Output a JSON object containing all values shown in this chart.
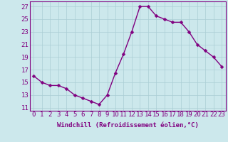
{
  "x": [
    0,
    1,
    2,
    3,
    4,
    5,
    6,
    7,
    8,
    9,
    10,
    11,
    12,
    13,
    14,
    15,
    16,
    17,
    18,
    19,
    20,
    21,
    22,
    23
  ],
  "y": [
    16,
    15,
    14.5,
    14.5,
    14,
    13,
    12.5,
    12,
    11.5,
    13,
    16.5,
    19.5,
    23,
    27,
    27,
    25.5,
    25,
    24.5,
    24.5,
    23,
    21,
    20,
    19,
    17.5
  ],
  "line_color": "#800080",
  "marker_color": "#800080",
  "bg_color": "#cce8ec",
  "grid_color": "#aacdd4",
  "axis_color": "#800080",
  "tick_color": "#800080",
  "xlabel": "Windchill (Refroidissement éolien,°C)",
  "xlim": [
    -0.5,
    23.5
  ],
  "ylim": [
    10.5,
    27.8
  ],
  "yticks": [
    11,
    13,
    15,
    17,
    19,
    21,
    23,
    25,
    27
  ],
  "xticks": [
    0,
    1,
    2,
    3,
    4,
    5,
    6,
    7,
    8,
    9,
    10,
    11,
    12,
    13,
    14,
    15,
    16,
    17,
    18,
    19,
    20,
    21,
    22,
    23
  ],
  "xtick_labels": [
    "0",
    "1",
    "2",
    "3",
    "4",
    "5",
    "6",
    "7",
    "8",
    "9",
    "10",
    "11",
    "12",
    "13",
    "14",
    "15",
    "16",
    "17",
    "18",
    "19",
    "20",
    "21",
    "22",
    "23"
  ],
  "line_width": 1.0,
  "marker_size": 2.5,
  "font_size": 6.5
}
